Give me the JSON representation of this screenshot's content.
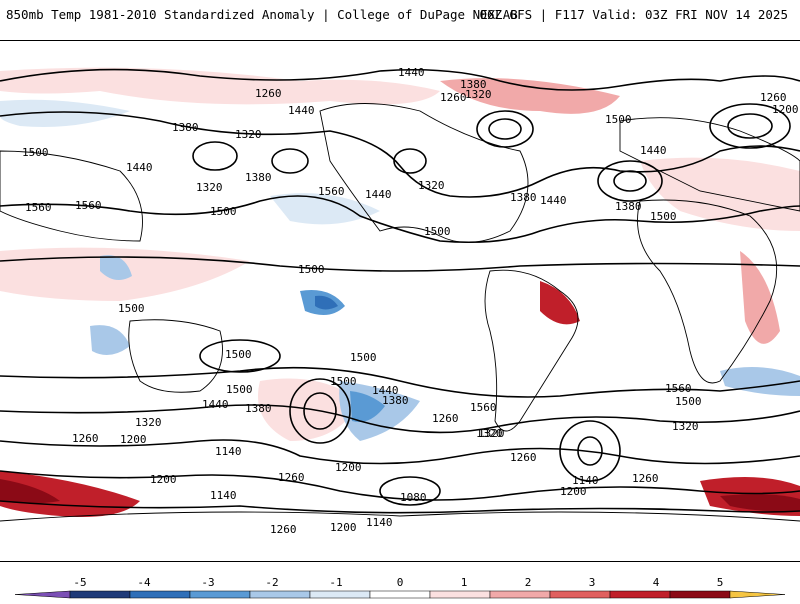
{
  "header": {
    "left": "850mb Temp 1981-2010 Standardized Anomaly | College of DuPage NEXLAB",
    "right": "06Z GFS | F117 Valid: 03Z FRI NOV 14 2025"
  },
  "contour_labels": [
    {
      "id": "c1",
      "text": "1440"
    },
    {
      "id": "c2",
      "text": "1380"
    },
    {
      "id": "c3",
      "text": "1320"
    },
    {
      "id": "c4",
      "text": "1260"
    },
    {
      "id": "c5",
      "text": "1440"
    },
    {
      "id": "c6",
      "text": "1380"
    },
    {
      "id": "c7",
      "text": "1320"
    },
    {
      "id": "c8",
      "text": "1260"
    },
    {
      "id": "c9",
      "text": "1380"
    },
    {
      "id": "c10",
      "text": "1320"
    },
    {
      "id": "c11",
      "text": "1500"
    },
    {
      "id": "c12",
      "text": "1440"
    },
    {
      "id": "c13",
      "text": "1560"
    },
    {
      "id": "c14",
      "text": "1500"
    },
    {
      "id": "c15",
      "text": "1560"
    },
    {
      "id": "c16",
      "text": "1440"
    },
    {
      "id": "c17",
      "text": "1320"
    },
    {
      "id": "c18",
      "text": "1500"
    },
    {
      "id": "c19",
      "text": "1380"
    },
    {
      "id": "c20",
      "text": "1440"
    },
    {
      "id": "c21",
      "text": "1500"
    },
    {
      "id": "c22",
      "text": "1440"
    },
    {
      "id": "c23",
      "text": "1380"
    },
    {
      "id": "c24",
      "text": "1500"
    },
    {
      "id": "c25",
      "text": "1260"
    },
    {
      "id": "c26",
      "text": "1200"
    },
    {
      "id": "c27",
      "text": "1500"
    },
    {
      "id": "c28",
      "text": "1500"
    },
    {
      "id": "c29",
      "text": "1500"
    },
    {
      "id": "c30",
      "text": "1500"
    },
    {
      "id": "c31",
      "text": "1440"
    },
    {
      "id": "c32",
      "text": "1380"
    },
    {
      "id": "c33",
      "text": "1260"
    },
    {
      "id": "c34",
      "text": "1560"
    },
    {
      "id": "c35",
      "text": "1320"
    },
    {
      "id": "c36",
      "text": "1320"
    },
    {
      "id": "c37",
      "text": "1260"
    },
    {
      "id": "c38",
      "text": "1200"
    },
    {
      "id": "c39",
      "text": "1140"
    },
    {
      "id": "c40",
      "text": "1200"
    },
    {
      "id": "c41",
      "text": "1200"
    },
    {
      "id": "c42",
      "text": "1260"
    },
    {
      "id": "c43",
      "text": "1140"
    },
    {
      "id": "c44",
      "text": "1080"
    },
    {
      "id": "c45",
      "text": "1140"
    },
    {
      "id": "c46",
      "text": "1200"
    },
    {
      "id": "c47",
      "text": "1260"
    },
    {
      "id": "c48",
      "text": "1440"
    },
    {
      "id": "c49",
      "text": "1380"
    },
    {
      "id": "c50",
      "text": "1320"
    },
    {
      "id": "c51",
      "text": "1500"
    },
    {
      "id": "c52",
      "text": "1560"
    },
    {
      "id": "c53",
      "text": "1260"
    },
    {
      "id": "c54",
      "text": "1140"
    },
    {
      "id": "c55",
      "text": "1200"
    },
    {
      "id": "c56",
      "text": "1260"
    },
    {
      "id": "c57",
      "text": "1320"
    },
    {
      "id": "c58",
      "text": "1500"
    },
    {
      "id": "c59",
      "text": "1560"
    },
    {
      "id": "c60",
      "text": "1500"
    }
  ],
  "colorbar": {
    "ticks": [
      "-5",
      "-4",
      "-3",
      "-2",
      "-1",
      "0",
      "1",
      "2",
      "3",
      "4",
      "5"
    ],
    "colors": [
      "#7b4fb5",
      "#1f3a78",
      "#2f6fb8",
      "#5a9ad4",
      "#a9c8e8",
      "#dce9f5",
      "#ffffff",
      "#fbe0e0",
      "#f1a9a9",
      "#e0605f",
      "#c01f2a",
      "#8b0a16",
      "#f5c542"
    ]
  }
}
